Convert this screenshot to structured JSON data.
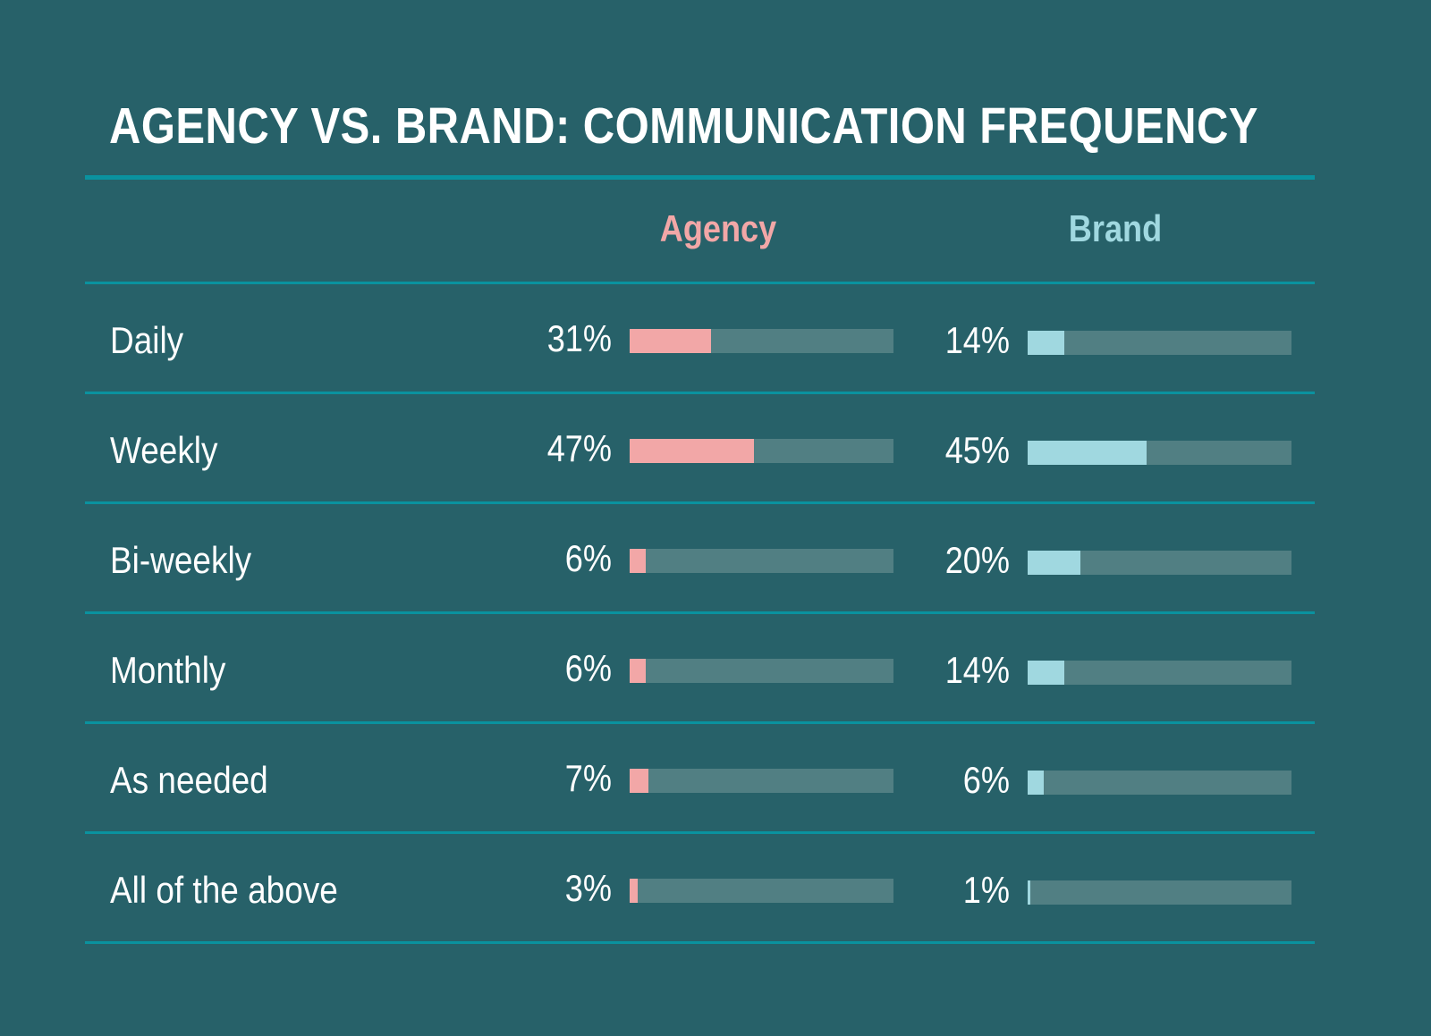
{
  "chart_data": {
    "type": "bar",
    "title": "AGENCY VS. BRAND: COMMUNICATION FREQUENCY",
    "categories": [
      "Daily",
      "Weekly",
      "Bi-weekly",
      "Monthly",
      "As needed",
      "All of the above"
    ],
    "series": [
      {
        "name": "Agency",
        "color": "#f2a7a7",
        "values": [
          31,
          47,
          6,
          6,
          7,
          3
        ],
        "labels": [
          "31%",
          "47%",
          "6%",
          "6%",
          "7%",
          "3%"
        ]
      },
      {
        "name": "Brand",
        "color": "#a0d8e0",
        "values": [
          14,
          45,
          20,
          14,
          6,
          1
        ],
        "labels": [
          "14%",
          "45%",
          "20%",
          "14%",
          "6%",
          "1%"
        ]
      }
    ],
    "ylim": [
      0,
      100
    ],
    "units": "%",
    "orientation": "horizontal",
    "track_color": "#517f83",
    "background_color": "#276169",
    "rule_color": "#0a929f"
  }
}
